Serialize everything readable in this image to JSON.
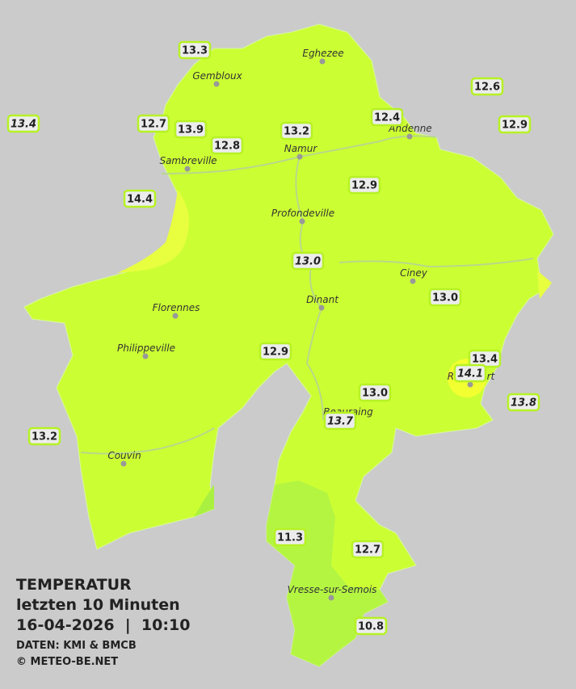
{
  "legend": {
    "title": "TEMPERATUR",
    "subtitle": "letzten 10 Minuten",
    "datetime": "16-04-2026  |  10:10",
    "source": "DATEN: KMI & BMCB",
    "copyright": "© METEO-BE.NET"
  },
  "towns": [
    {
      "name": "Eghezee"
    },
    {
      "name": "Gembloux"
    },
    {
      "name": "Sambreville"
    },
    {
      "name": "Namur"
    },
    {
      "name": "Andenne"
    },
    {
      "name": "Profondeville"
    },
    {
      "name": "Ciney"
    },
    {
      "name": "Dinant"
    },
    {
      "name": "Florennes"
    },
    {
      "name": "Philippeville"
    },
    {
      "name": "Rochefort"
    },
    {
      "name": "Beauraing"
    },
    {
      "name": "Couvin"
    },
    {
      "name": "Vresse-sur-Semois"
    }
  ],
  "stations": [
    {
      "label": "13.3",
      "italic": false
    },
    {
      "label": "12.6",
      "italic": false
    },
    {
      "label": "13.4",
      "italic": true
    },
    {
      "label": "12.7",
      "italic": false
    },
    {
      "label": "13.9",
      "italic": false
    },
    {
      "label": "12.4",
      "italic": false
    },
    {
      "label": "12.9",
      "italic": false
    },
    {
      "label": "13.2",
      "italic": false
    },
    {
      "label": "12.8",
      "italic": false
    },
    {
      "label": "14.4",
      "italic": false
    },
    {
      "label": "12.9",
      "italic": false
    },
    {
      "label": "13.0",
      "italic": true
    },
    {
      "label": "13.0",
      "italic": false
    },
    {
      "label": "12.9",
      "italic": false
    },
    {
      "label": "13.4",
      "italic": false
    },
    {
      "label": "14.1",
      "italic": true
    },
    {
      "label": "13.0",
      "italic": false
    },
    {
      "label": "13.8",
      "italic": true
    },
    {
      "label": "13.7",
      "italic": true
    },
    {
      "label": "13.2",
      "italic": false
    },
    {
      "label": "11.3",
      "italic": false
    },
    {
      "label": "12.7",
      "italic": false
    },
    {
      "label": "10.8",
      "italic": false
    }
  ]
}
